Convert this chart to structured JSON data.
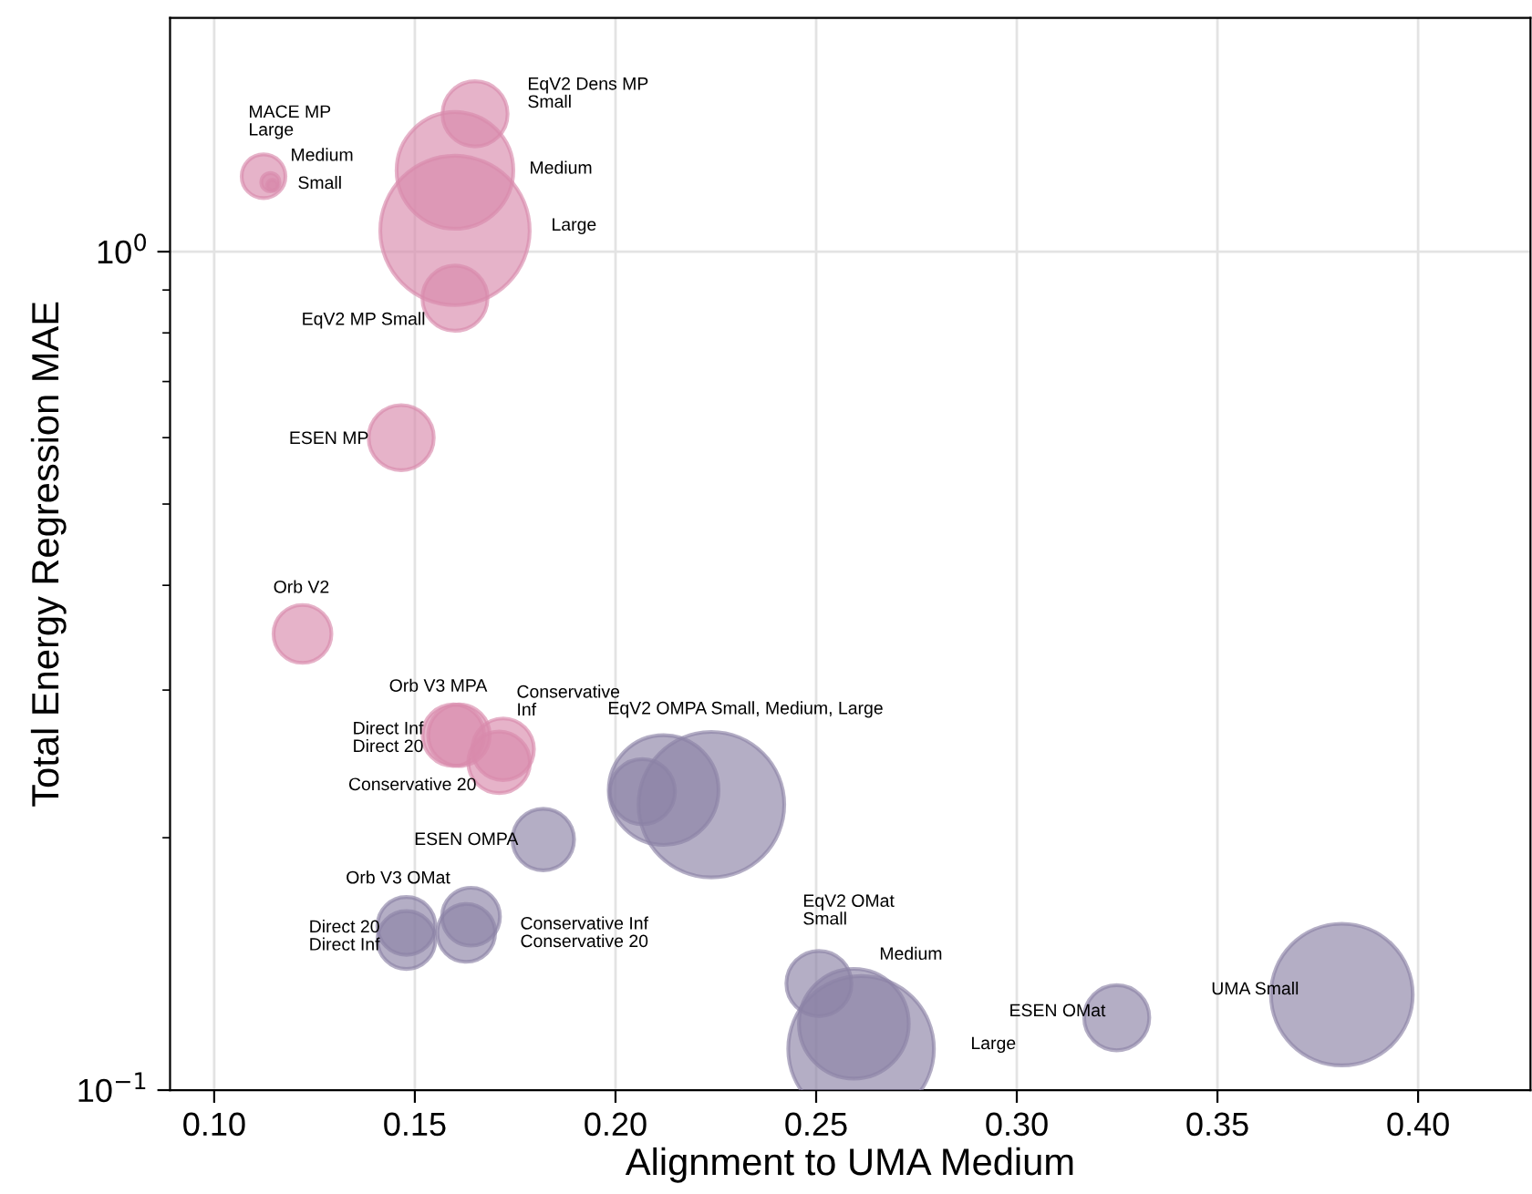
{
  "chart_data": {
    "type": "bubble",
    "xlabel": "Alignment to UMA Medium",
    "ylabel": "Total Energy Regression MAE",
    "log": "y",
    "grid": true,
    "xlim": [
      0.089,
      0.428
    ],
    "ylim": [
      0.1,
      1.9
    ],
    "xticks": [
      {
        "value": 0.1,
        "label": "0.10"
      },
      {
        "value": 0.15,
        "label": "0.15"
      },
      {
        "value": 0.2,
        "label": "0.20"
      },
      {
        "value": 0.25,
        "label": "0.25"
      },
      {
        "value": 0.3,
        "label": "0.30"
      },
      {
        "value": 0.35,
        "label": "0.35"
      },
      {
        "value": 0.4,
        "label": "0.40"
      }
    ],
    "yticks": [
      {
        "value": 0.1,
        "label": "10$^{−1}$"
      },
      {
        "value": 0.2,
        "label": null
      },
      {
        "value": 0.3,
        "label": null
      },
      {
        "value": 0.4,
        "label": null
      },
      {
        "value": 0.5,
        "label": null
      },
      {
        "value": 0.6,
        "label": null
      },
      {
        "value": 0.7,
        "label": null
      },
      {
        "value": 0.8,
        "label": null
      },
      {
        "value": 0.9,
        "label": null
      },
      {
        "value": 1,
        "label": "10$^{0}$"
      }
    ],
    "series": [
      {
        "color": "#d88aac",
        "x": [
          0.1123,
          0.114,
          0.1145,
          0.165,
          0.16,
          0.16,
          0.16,
          0.1466,
          0.122,
          0.1596,
          0.161,
          0.172,
          0.171
        ],
        "values": [
          1.23,
          1.21,
          1.2,
          1.46,
          1.25,
          1.06,
          0.88,
          0.6,
          0.35,
          0.265,
          0.265,
          0.255,
          0.246
        ],
        "sizes": [
          0.086,
          0.015,
          0.005,
          0.19,
          0.61,
          1,
          0.19,
          0.19,
          0.15,
          0.17,
          0.17,
          0.17,
          0.17
        ]
      },
      {
        "color": "#8c83a6",
        "x": [
          0.182,
          0.2067,
          0.212,
          0.2239,
          0.1479,
          0.1479,
          0.164,
          0.1628,
          0.2507,
          0.2594,
          0.2612,
          0.3249,
          0.381
        ],
        "values": [
          0.199,
          0.227,
          0.228,
          0.219,
          0.157,
          0.151,
          0.161,
          0.154,
          0.134,
          0.12,
          0.112,
          0.122,
          0.13
        ],
        "sizes": [
          0.17,
          0.19,
          0.54,
          0.95,
          0.15,
          0.15,
          0.15,
          0.15,
          0.19,
          0.54,
          0.95,
          0.19,
          0.9
        ]
      }
    ],
    "annotations": [
      "MACE MP\nLarge",
      "Medium",
      "Small",
      "EqV2 Dens MP\nSmall",
      "Medium",
      "Large",
      "EqV2 MP Small",
      "ESEN MP",
      "Orb V2",
      "Orb V3 MPA",
      "Direct Inf\nDirect 20",
      "Conservative\nInf",
      "Conservative 20",
      "EqV2 OMPA Small, Medium, Large",
      "ESEN OMPA",
      "Orb V3 OMat",
      "Direct 20\nDirect Inf",
      "Conservative Inf\nConservative 20",
      "EqV2 OMat\nSmall",
      "Medium",
      "Large",
      "ESEN OMat",
      "UMA Small"
    ]
  }
}
